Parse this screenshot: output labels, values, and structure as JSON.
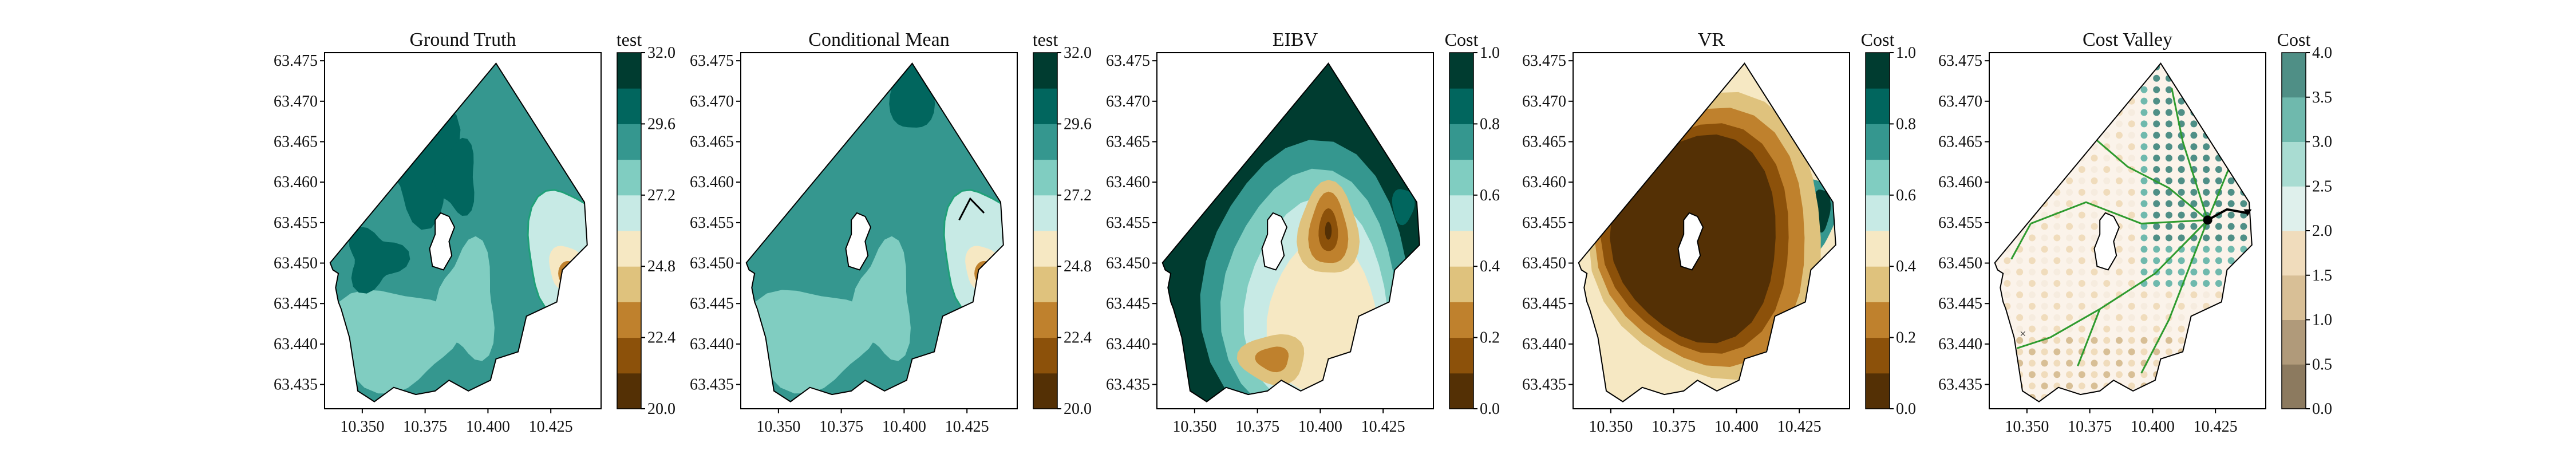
{
  "figure": {
    "panels": [
      {
        "title": "Ground Truth",
        "colorbar_label": "test",
        "kind": "gt"
      },
      {
        "title": "Conditional Mean",
        "colorbar_label": "test",
        "kind": "cm"
      },
      {
        "title": "EIBV",
        "colorbar_label": "Cost",
        "kind": "eibv"
      },
      {
        "title": "VR",
        "colorbar_label": "Cost",
        "kind": "vr"
      },
      {
        "title": "Cost Valley",
        "colorbar_label": "Cost",
        "kind": "cv"
      }
    ],
    "colors": {
      "brbg_salinity": [
        "#543005",
        "#8c510a",
        "#bf812d",
        "#dfc27d",
        "#f6e8c3",
        "#c7eae5",
        "#80cdc1",
        "#35978f",
        "#01665e",
        "#003c30"
      ],
      "brbg_cost": [
        "#543005",
        "#8c510a",
        "#bf812d",
        "#dfc27d",
        "#f6e8c3",
        "#c7eae5",
        "#80cdc1",
        "#35978f",
        "#01665e",
        "#003c30"
      ],
      "valley_green": "#2e9b2e",
      "path_black": "#000000",
      "boundary_line": "#000000"
    }
  },
  "chart_data": [
    {
      "type": "heatmap",
      "title": "Ground Truth",
      "x_ticks": [
        "10.350",
        "10.375",
        "10.400",
        "10.425"
      ],
      "y_ticks": [
        "63.475",
        "63.470",
        "63.465",
        "63.460",
        "63.455",
        "63.450",
        "63.445",
        "63.440",
        "63.435"
      ],
      "xlim": [
        10.335,
        10.445
      ],
      "ylim": [
        63.432,
        63.476
      ],
      "colorbar": {
        "label": "test",
        "ticks": [
          "20.0",
          "22.4",
          "24.8",
          "27.2",
          "29.6",
          "32.0"
        ],
        "range": [
          20.0,
          32.0
        ]
      },
      "levels": [
        20.0,
        22.4,
        24.8,
        27.2,
        29.6,
        32.0
      ]
    },
    {
      "type": "heatmap",
      "title": "Conditional Mean",
      "x_ticks": [
        "10.350",
        "10.375",
        "10.400",
        "10.425"
      ],
      "y_ticks": [
        "63.475",
        "63.470",
        "63.465",
        "63.460",
        "63.455",
        "63.450",
        "63.445",
        "63.440",
        "63.435"
      ],
      "xlim": [
        10.335,
        10.445
      ],
      "ylim": [
        63.432,
        63.476
      ],
      "colorbar": {
        "label": "test",
        "ticks": [
          "20.0",
          "22.4",
          "24.8",
          "27.2",
          "29.6",
          "32.0"
        ],
        "range": [
          20.0,
          32.0
        ]
      },
      "levels": [
        20.0,
        22.4,
        24.8,
        27.2,
        29.6,
        32.0
      ]
    },
    {
      "type": "heatmap",
      "title": "EIBV",
      "x_ticks": [
        "10.350",
        "10.375",
        "10.400",
        "10.425"
      ],
      "y_ticks": [
        "63.475",
        "63.470",
        "63.465",
        "63.460",
        "63.455",
        "63.450",
        "63.445",
        "63.440",
        "63.435"
      ],
      "xlim": [
        10.335,
        10.445
      ],
      "ylim": [
        63.432,
        63.476
      ],
      "colorbar": {
        "label": "Cost",
        "ticks": [
          "0.0",
          "0.2",
          "0.4",
          "0.6",
          "0.8",
          "1.0"
        ],
        "range": [
          0.0,
          1.0
        ]
      },
      "levels": [
        0.0,
        0.2,
        0.4,
        0.6,
        0.8,
        1.0
      ]
    },
    {
      "type": "heatmap",
      "title": "VR",
      "x_ticks": [
        "10.350",
        "10.375",
        "10.400",
        "10.425"
      ],
      "y_ticks": [
        "63.475",
        "63.470",
        "63.465",
        "63.460",
        "63.455",
        "63.450",
        "63.445",
        "63.440",
        "63.435"
      ],
      "xlim": [
        10.335,
        10.445
      ],
      "ylim": [
        63.432,
        63.476
      ],
      "colorbar": {
        "label": "Cost",
        "ticks": [
          "0.0",
          "0.2",
          "0.4",
          "0.6",
          "0.8",
          "1.0"
        ],
        "range": [
          0.0,
          1.0
        ]
      },
      "levels": [
        0.0,
        0.2,
        0.4,
        0.6,
        0.8,
        1.0
      ]
    },
    {
      "type": "scatter",
      "title": "Cost Valley",
      "x_ticks": [
        "10.350",
        "10.375",
        "10.400",
        "10.425"
      ],
      "y_ticks": [
        "63.475",
        "63.470",
        "63.465",
        "63.460",
        "63.455",
        "63.450",
        "63.445",
        "63.440",
        "63.435"
      ],
      "xlim": [
        10.335,
        10.445
      ],
      "ylim": [
        63.432,
        63.476
      ],
      "colorbar": {
        "label": "Cost",
        "ticks": [
          "0.0",
          "0.5",
          "1.0",
          "1.5",
          "2.0",
          "2.5",
          "3.0",
          "3.5",
          "4.0"
        ],
        "range": [
          0.0,
          4.0
        ]
      },
      "levels": [
        0.0,
        0.5,
        1.0,
        1.5,
        2.0,
        2.5,
        3.0,
        3.5,
        4.0
      ]
    }
  ]
}
